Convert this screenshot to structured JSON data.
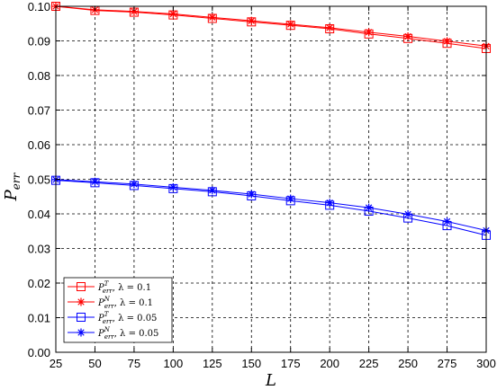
{
  "chart_data": {
    "type": "line",
    "title": "",
    "xlabel": "L",
    "ylabel": "P",
    "ylabel_sub": "err",
    "xlim": [
      25,
      300
    ],
    "ylim": [
      0.0,
      0.1
    ],
    "x_ticks": [
      "25",
      "50",
      "75",
      "100",
      "125",
      "150",
      "175",
      "200",
      "225",
      "250",
      "275",
      "300"
    ],
    "y_ticks": [
      "0.00",
      "0.01",
      "0.02",
      "0.03",
      "0.04",
      "0.05",
      "0.06",
      "0.07",
      "0.08",
      "0.09",
      "0.10"
    ],
    "grid": true,
    "legend_position": "bottom-left",
    "x": [
      25,
      50,
      75,
      100,
      125,
      150,
      175,
      200,
      225,
      250,
      275,
      300
    ],
    "series": [
      {
        "name": "P^T_err, λ = 0.1",
        "label_base": "P",
        "label_sup": "T",
        "label_sub": "err",
        "label_rest": ", λ = 0.1",
        "color": "#ff0000",
        "marker": "square",
        "values": [
          0.1,
          0.0988,
          0.0983,
          0.0975,
          0.0965,
          0.0955,
          0.0945,
          0.0935,
          0.092,
          0.0907,
          0.0893,
          0.0878
        ]
      },
      {
        "name": "P^N_err, λ = 0.1",
        "label_base": "P",
        "label_sup": "N",
        "label_sub": "err",
        "label_rest": ", λ = 0.1",
        "color": "#ff0000",
        "marker": "star",
        "values": [
          0.1,
          0.099,
          0.0985,
          0.0978,
          0.0968,
          0.0958,
          0.0948,
          0.0938,
          0.0925,
          0.0913,
          0.0899,
          0.0885
        ]
      },
      {
        "name": "P^T_err, λ = 0.05",
        "label_base": "P",
        "label_sup": "T",
        "label_sub": "err",
        "label_rest": ", λ = 0.05",
        "color": "#0000ff",
        "marker": "square",
        "values": [
          0.0497,
          0.049,
          0.0482,
          0.0473,
          0.0464,
          0.0452,
          0.0438,
          0.0425,
          0.0408,
          0.0388,
          0.0366,
          0.0338
        ]
      },
      {
        "name": "P^N_err, λ = 0.05",
        "label_base": "P",
        "label_sup": "N",
        "label_sub": "err",
        "label_rest": ", λ = 0.05",
        "color": "#0000ff",
        "marker": "star",
        "values": [
          0.0499,
          0.0493,
          0.0486,
          0.0477,
          0.0468,
          0.0457,
          0.0444,
          0.0432,
          0.0418,
          0.0399,
          0.0378,
          0.0352
        ]
      }
    ]
  }
}
